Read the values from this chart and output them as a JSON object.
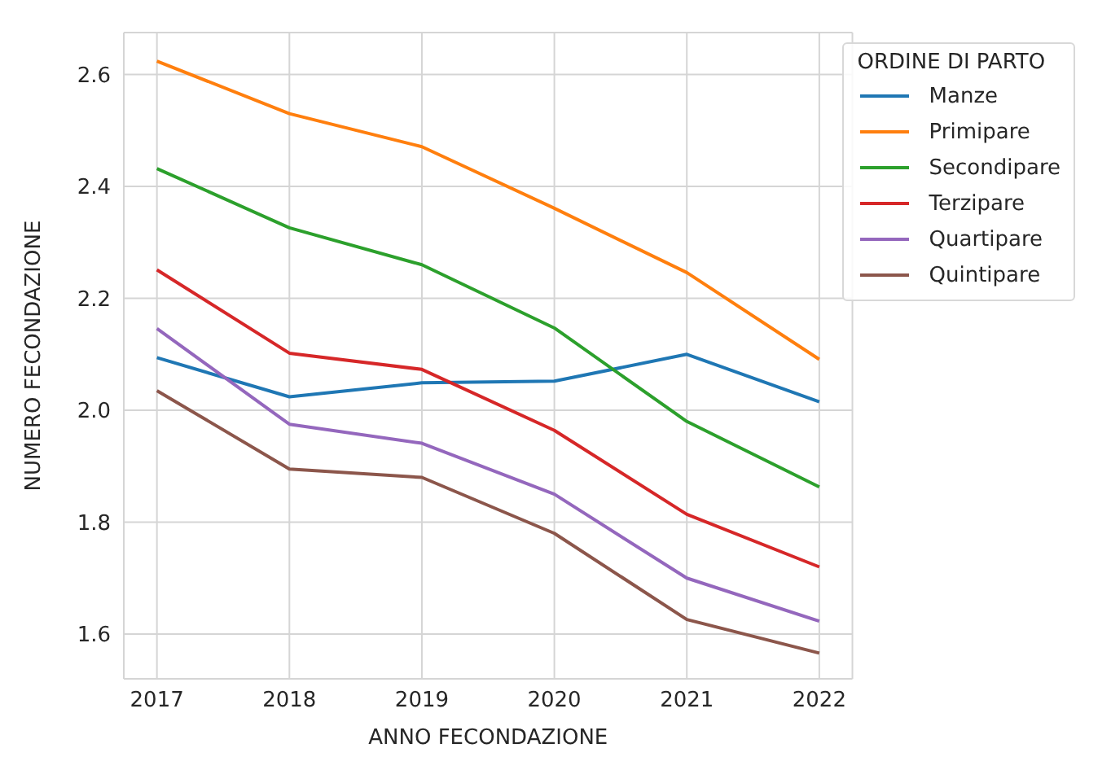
{
  "chart_data": {
    "type": "line",
    "xlabel": "ANNO FECONDAZIONE",
    "ylabel": "NUMERO FECONDAZIONE",
    "legend_title": "ORDINE DI PARTO",
    "legend": "top right",
    "grid": true,
    "marker": "none",
    "line_style": "solid",
    "x": [
      2017,
      2018,
      2019,
      2020,
      2021,
      2022
    ],
    "xlim": [
      2016.75,
      2022.25
    ],
    "xticks": [
      2017,
      2018,
      2019,
      2020,
      2021,
      2022
    ],
    "ylim": [
      1.52,
      2.675
    ],
    "yticks": [
      {
        "value": 1.6,
        "label": "1.6"
      },
      {
        "value": 1.8,
        "label": "1.8"
      },
      {
        "value": 2.0,
        "label": "2.0"
      },
      {
        "value": 2.2,
        "label": "2.2"
      },
      {
        "value": 2.4,
        "label": "2.4"
      },
      {
        "value": 2.6,
        "label": "2.6"
      }
    ],
    "series": [
      {
        "name": "Manze",
        "color": "#1f77b4",
        "values": [
          2.094,
          2.024,
          2.049,
          2.052,
          2.1,
          2.015
        ]
      },
      {
        "name": "Primipare",
        "color": "#ff7f0e",
        "values": [
          2.624,
          2.53,
          2.471,
          2.361,
          2.246,
          2.091
        ]
      },
      {
        "name": "Secondipare",
        "color": "#2ca02c",
        "values": [
          2.432,
          2.326,
          2.26,
          2.147,
          1.98,
          1.863
        ]
      },
      {
        "name": "Terzipare",
        "color": "#d62728",
        "values": [
          2.251,
          2.102,
          2.073,
          1.964,
          1.814,
          1.72
        ]
      },
      {
        "name": "Quartipare",
        "color": "#9467bd",
        "values": [
          2.146,
          1.975,
          1.941,
          1.85,
          1.7,
          1.623
        ]
      },
      {
        "name": "Quintipare",
        "color": "#8c564b",
        "values": [
          2.035,
          1.895,
          1.88,
          1.78,
          1.626,
          1.566
        ]
      }
    ]
  }
}
